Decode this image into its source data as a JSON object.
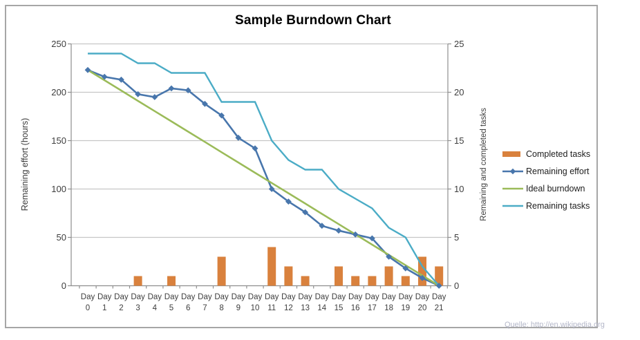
{
  "source_note": "Quelle: http://en.wikipedia.org",
  "chart_data": {
    "type": "combo-bar-line",
    "title": "Sample Burndown Chart",
    "x_axis": {
      "tick_prefix": "Day",
      "days": [
        0,
        1,
        2,
        3,
        4,
        5,
        6,
        7,
        8,
        9,
        10,
        11,
        12,
        13,
        14,
        15,
        16,
        17,
        18,
        19,
        20,
        21
      ]
    },
    "left_axis": {
      "label": "Remaining effort (hours)",
      "ticks": [
        250,
        200,
        150,
        100,
        50,
        0
      ],
      "range": [
        0,
        250
      ]
    },
    "right_axis": {
      "label": "Remaining and completed tasks",
      "ticks": [
        25,
        20,
        15,
        10,
        5,
        0
      ],
      "range": [
        0,
        25
      ]
    },
    "grid": "horizontal-on",
    "legend_position": "right",
    "series": [
      {
        "name": "Completed tasks",
        "type": "bar",
        "axis": "right",
        "color": "#d9813d",
        "values": [
          0,
          0,
          0,
          1,
          0,
          1,
          0,
          0,
          3,
          0,
          0,
          4,
          2,
          1,
          0,
          2,
          1,
          1,
          2,
          1,
          3,
          2
        ]
      },
      {
        "name": "Remaining effort",
        "type": "line",
        "marker": "diamond",
        "axis": "left",
        "color": "#4876ac",
        "values": [
          223,
          216,
          213,
          198,
          195,
          204,
          202,
          188,
          176,
          153,
          142,
          100,
          87,
          76,
          62,
          57,
          53,
          49,
          30,
          18,
          8,
          0
        ]
      },
      {
        "name": "Ideal burndown",
        "type": "line",
        "marker": "none",
        "axis": "left",
        "color": "#9bbb59",
        "values": [
          223,
          212.4,
          201.8,
          191.1,
          180.5,
          169.9,
          159.3,
          148.7,
          138,
          127.4,
          116.8,
          106.2,
          95.6,
          85,
          74.3,
          63.7,
          53.1,
          42.5,
          31.9,
          21.2,
          10.6,
          0
        ]
      },
      {
        "name": "Remaining tasks",
        "type": "line",
        "marker": "none",
        "axis": "right",
        "color": "#4bacc6",
        "values": [
          24,
          24,
          24,
          23,
          23,
          22,
          22,
          22,
          19,
          19,
          19,
          15,
          13,
          12,
          12,
          10,
          9,
          8,
          6,
          5,
          2,
          0
        ]
      }
    ],
    "colors": {
      "gridline": "#c6c6c6",
      "axis": "#8e8e8e",
      "tick_text": "#3d3d3d"
    }
  }
}
